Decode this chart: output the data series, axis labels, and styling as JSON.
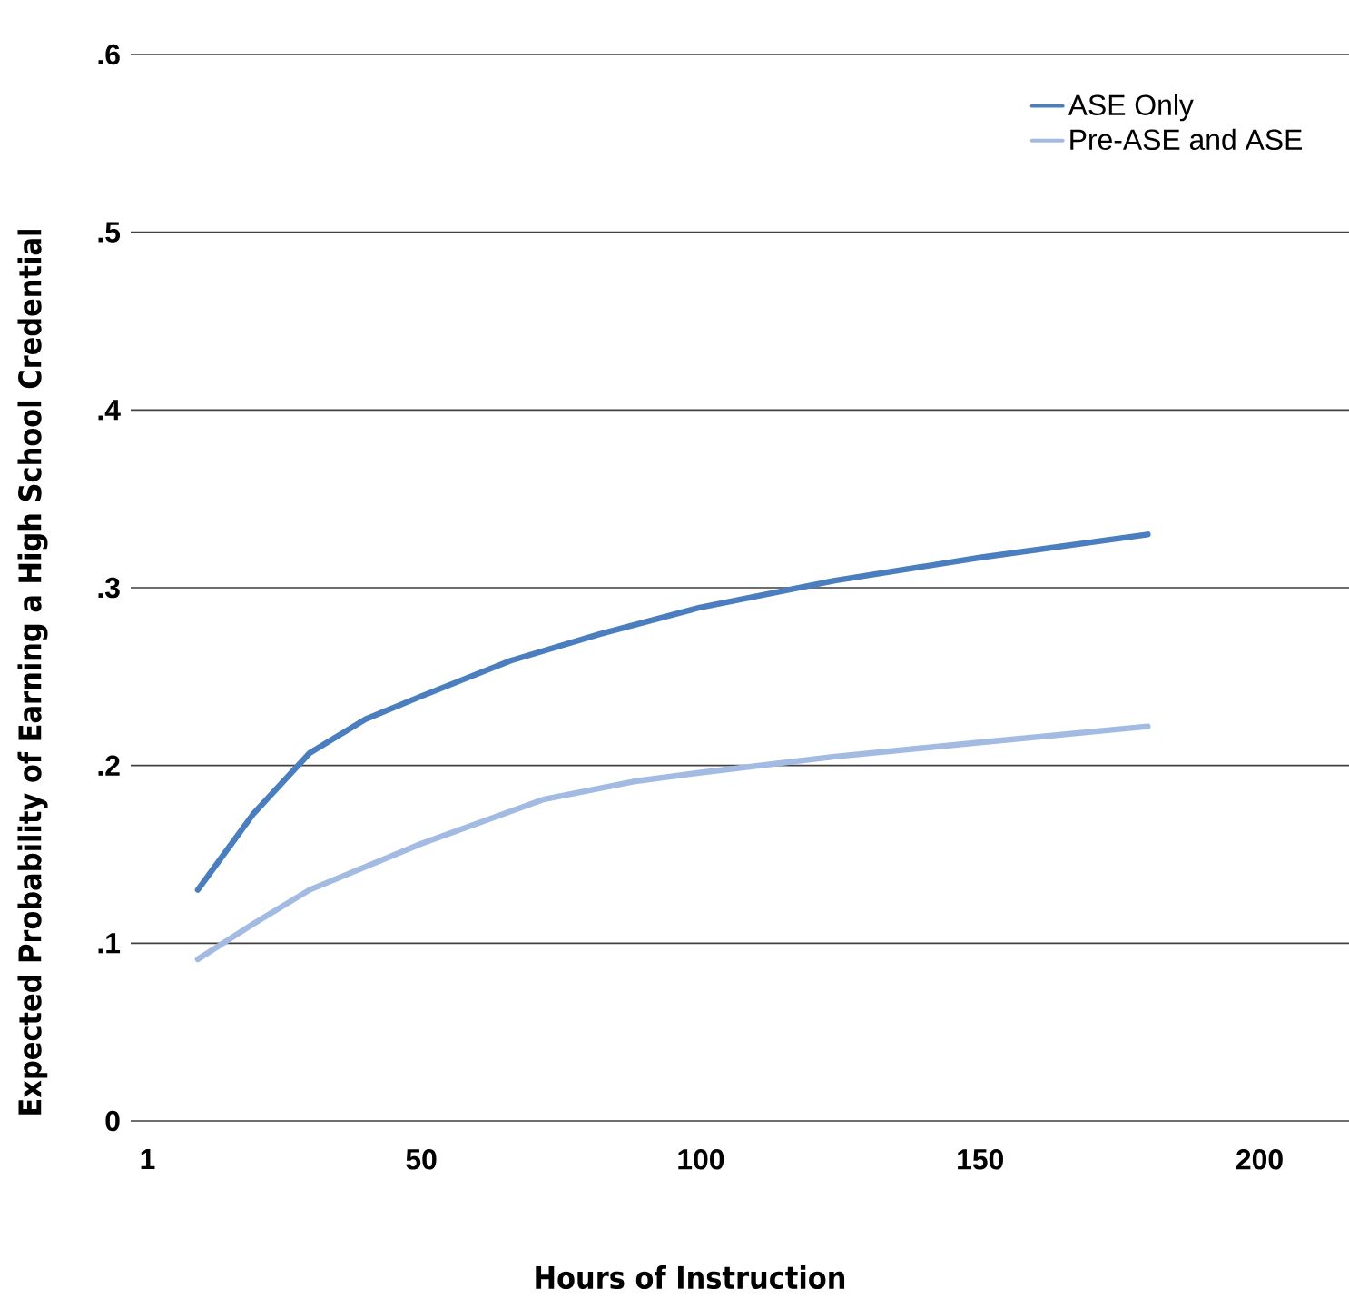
{
  "chart_data": {
    "type": "line",
    "xlabel": "Hours of Instruction",
    "ylabel": "Expected Probability of Earning a High School Credential",
    "xlim": [
      -2,
      216
    ],
    "xticks": [
      1,
      50,
      100,
      150,
      200
    ],
    "ylim": [
      0,
      0.6
    ],
    "yticks": [
      0,
      {
        "value": 0.1,
        "label": ".1"
      },
      {
        "value": 0.2,
        "label": ".2"
      },
      {
        "value": 0.3,
        "label": ".3"
      },
      {
        "value": 0.4,
        "label": ".4"
      },
      {
        "value": 0.5,
        "label": ".5"
      },
      {
        "value": 0.6,
        "label": ".6"
      }
    ],
    "grid": "y",
    "legend": "top right",
    "marker": "none",
    "line_style": "solid",
    "series": [
      {
        "name": "ASE Only",
        "color": "#4a7ebf",
        "x": [
          10,
          20,
          30,
          40,
          50,
          66,
          82,
          100,
          124,
          150,
          180
        ],
        "values": [
          0.13,
          0.173,
          0.207,
          0.226,
          0.239,
          0.259,
          0.274,
          0.289,
          0.304,
          0.317,
          0.33
        ]
      },
      {
        "name": "Pre-ASE and ASE",
        "color": "#a3bbe2",
        "x": [
          10,
          20,
          30,
          50,
          72,
          88,
          100,
          124,
          150,
          180
        ],
        "values": [
          0.091,
          0.111,
          0.13,
          0.156,
          0.181,
          0.191,
          0.196,
          0.205,
          0.213,
          0.222
        ]
      }
    ]
  }
}
